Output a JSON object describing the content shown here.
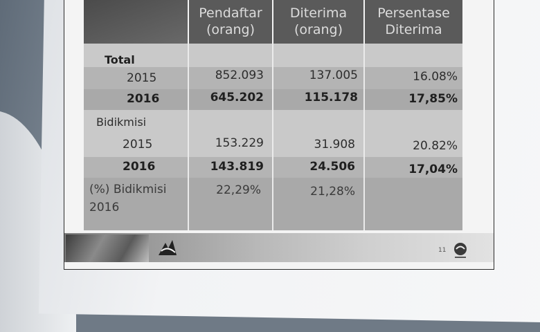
{
  "table": {
    "headers": [
      {
        "line1": "Pendaftar",
        "line2": "(orang)"
      },
      {
        "line1": "Diterima",
        "line2": "(orang)"
      },
      {
        "line1": "Persentase",
        "line2": "Diterima"
      }
    ],
    "sections": [
      {
        "title": "Total",
        "rows": [
          {
            "year": "2015",
            "pendaftar": "852.093",
            "diterima": "137.005",
            "persentase": "16.08%",
            "bold": false
          },
          {
            "year": "2016",
            "pendaftar": "645.202",
            "diterima": "115.178",
            "persentase": "17,85%",
            "bold": true
          }
        ]
      },
      {
        "title": "Bidikmisi",
        "rows": [
          {
            "year": "2015",
            "pendaftar": "153.229",
            "diterima": "31.908",
            "persentase": "20.82%",
            "bold": false
          },
          {
            "year": "2016",
            "pendaftar": "143.819",
            "diterima": "24.506",
            "persentase": "17,04%",
            "bold": true
          }
        ]
      }
    ],
    "summary": {
      "label_line1": "(%) Bidikmisi",
      "label_line2": "2016",
      "pendaftar": "22,29%",
      "diterima": "21,28%"
    }
  },
  "footer": {
    "page_number": "11"
  },
  "colors": {
    "header_bg": "#5a5a5a",
    "header_text": "#dcdcdc",
    "band_light": "#c9c9c9",
    "band_dark": "#a9a9a9"
  }
}
